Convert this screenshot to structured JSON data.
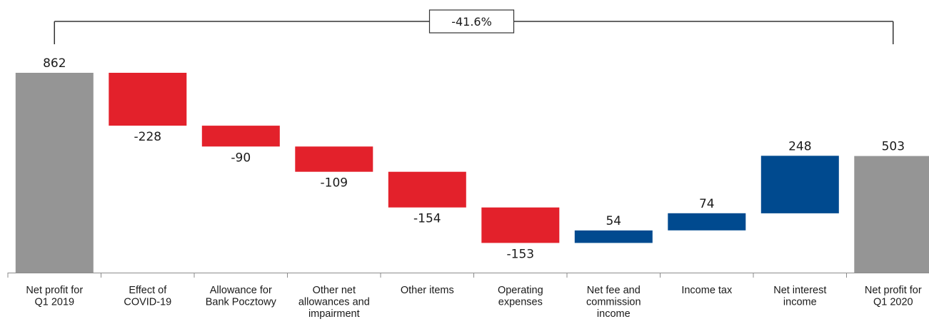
{
  "chart_data": {
    "type": "bar",
    "subtype": "waterfall",
    "categories": [
      [
        "Net profit for",
        "Q1 2019"
      ],
      [
        "Effect of",
        "COVID-19"
      ],
      [
        "Allowance for",
        "Bank Pocztowy"
      ],
      [
        "Other net",
        "allowances and",
        "impairment"
      ],
      [
        "Other items"
      ],
      [
        "Operating",
        "expenses"
      ],
      [
        "Net fee and",
        "commission",
        "income"
      ],
      [
        "Income tax"
      ],
      [
        "Net interest",
        "income"
      ],
      [
        "Net profit for",
        "Q1 2020"
      ]
    ],
    "values": [
      862,
      -228,
      -90,
      -109,
      -154,
      -153,
      54,
      74,
      248,
      503
    ],
    "value_labels": [
      "862",
      "-228",
      "-90",
      "-109",
      "-154",
      "-153",
      "54",
      "74",
      "248",
      "503"
    ],
    "bar_kinds": [
      "total",
      "delta",
      "delta",
      "delta",
      "delta",
      "delta",
      "delta",
      "delta",
      "delta",
      "total"
    ],
    "change_label": "-41.6%",
    "colors": {
      "total": "#959595",
      "negative": "#e3212b",
      "positive": "#004a8f",
      "axis": "#8c8c8c",
      "bracket": "#333333"
    },
    "ylim": [
      0,
      862
    ],
    "grid": false,
    "legend": "none"
  }
}
